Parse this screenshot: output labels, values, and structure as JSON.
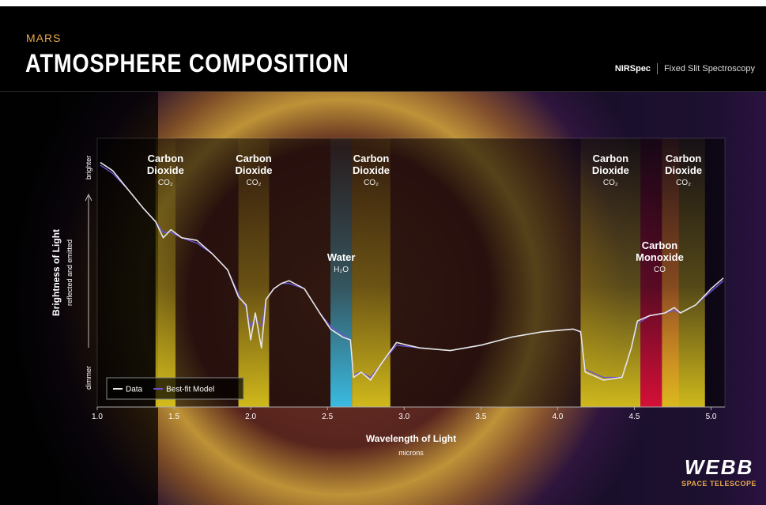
{
  "header": {
    "kicker": "MARS",
    "title": "ATMOSPHERE COMPOSITION",
    "instrument": "NIRSpec",
    "mode": "Fixed Slit Spectroscopy"
  },
  "logo": {
    "name": "WEBB",
    "subtitle": "SPACE TELESCOPE"
  },
  "chart_data": {
    "type": "line",
    "x_label": "Wavelength of Light",
    "x_unit": "microns",
    "y_label": "Brightness of Light",
    "y_sublabel": "reflected and emitted",
    "y_top_label": "brighter",
    "y_bottom_label": "dimmer",
    "xlim": [
      1.0,
      5.09
    ],
    "ylim": [
      0,
      1
    ],
    "xticks": [
      {
        "value": 1,
        "label": "1.0"
      },
      1.5,
      {
        "value": 2,
        "label": "2.0"
      },
      2.5,
      {
        "value": 3,
        "label": "3.0"
      },
      3.5,
      {
        "value": 4,
        "label": "4.0"
      },
      4.5,
      {
        "value": 5,
        "label": "5.0"
      }
    ],
    "legend": "lower left",
    "x": [
      1.02,
      1.1,
      1.2,
      1.3,
      1.38,
      1.43,
      1.48,
      1.55,
      1.65,
      1.75,
      1.85,
      1.92,
      1.97,
      2.0,
      2.03,
      2.07,
      2.1,
      2.15,
      2.2,
      2.25,
      2.35,
      2.45,
      2.52,
      2.6,
      2.65,
      2.67,
      2.72,
      2.78,
      2.85,
      2.95,
      3.1,
      3.3,
      3.5,
      3.7,
      3.9,
      4.1,
      4.15,
      4.18,
      4.3,
      4.42,
      4.48,
      4.52,
      4.6,
      4.7,
      4.76,
      4.8,
      4.9,
      5.0,
      5.08
    ],
    "series": [
      {
        "name": "Data",
        "color": "#e6e6e6",
        "values": [
          0.91,
          0.88,
          0.81,
          0.74,
          0.69,
          0.63,
          0.66,
          0.63,
          0.62,
          0.57,
          0.51,
          0.41,
          0.38,
          0.25,
          0.35,
          0.22,
          0.4,
          0.44,
          0.46,
          0.47,
          0.44,
          0.35,
          0.29,
          0.26,
          0.25,
          0.11,
          0.13,
          0.1,
          0.16,
          0.24,
          0.22,
          0.21,
          0.23,
          0.26,
          0.28,
          0.29,
          0.28,
          0.13,
          0.1,
          0.11,
          0.22,
          0.32,
          0.34,
          0.35,
          0.37,
          0.35,
          0.38,
          0.44,
          0.48
        ]
      },
      {
        "name": "Best-fit Model",
        "color": "#6b52d9",
        "values": [
          0.9,
          0.87,
          0.81,
          0.74,
          0.69,
          0.65,
          0.65,
          0.63,
          0.61,
          0.57,
          0.51,
          0.42,
          0.37,
          0.3,
          0.33,
          0.3,
          0.4,
          0.44,
          0.46,
          0.46,
          0.44,
          0.35,
          0.3,
          0.27,
          0.25,
          0.12,
          0.13,
          0.11,
          0.16,
          0.23,
          0.22,
          0.21,
          0.23,
          0.26,
          0.28,
          0.29,
          0.28,
          0.14,
          0.11,
          0.11,
          0.22,
          0.31,
          0.34,
          0.35,
          0.36,
          0.35,
          0.38,
          0.43,
          0.47
        ]
      }
    ],
    "bands": [
      {
        "name": "Carbon Dioxide",
        "formula": "CO₂",
        "start": 1.38,
        "end": 1.51,
        "color": "#d9c21c"
      },
      {
        "name": "Carbon Dioxide",
        "formula": "CO₂",
        "start": 1.92,
        "end": 2.12,
        "color": "#d9c21c"
      },
      {
        "name": "Water",
        "formula": "H₂O",
        "start": 2.52,
        "end": 2.66,
        "color": "#3cc4ec"
      },
      {
        "name": "Carbon Dioxide",
        "formula": "CO₂",
        "start": 2.66,
        "end": 2.91,
        "color": "#d9c21c"
      },
      {
        "name": "Carbon Dioxide",
        "formula": "CO₂",
        "start": 4.15,
        "end": 4.54,
        "color": "#d9c21c"
      },
      {
        "name": "Carbon Monoxide",
        "formula": "CO",
        "start": 4.54,
        "end": 4.79,
        "color": "#e0103a"
      },
      {
        "name": "Carbon Dioxide",
        "formula": "CO₂",
        "start": 4.68,
        "end": 4.96,
        "color": "#d9c21c"
      }
    ]
  }
}
